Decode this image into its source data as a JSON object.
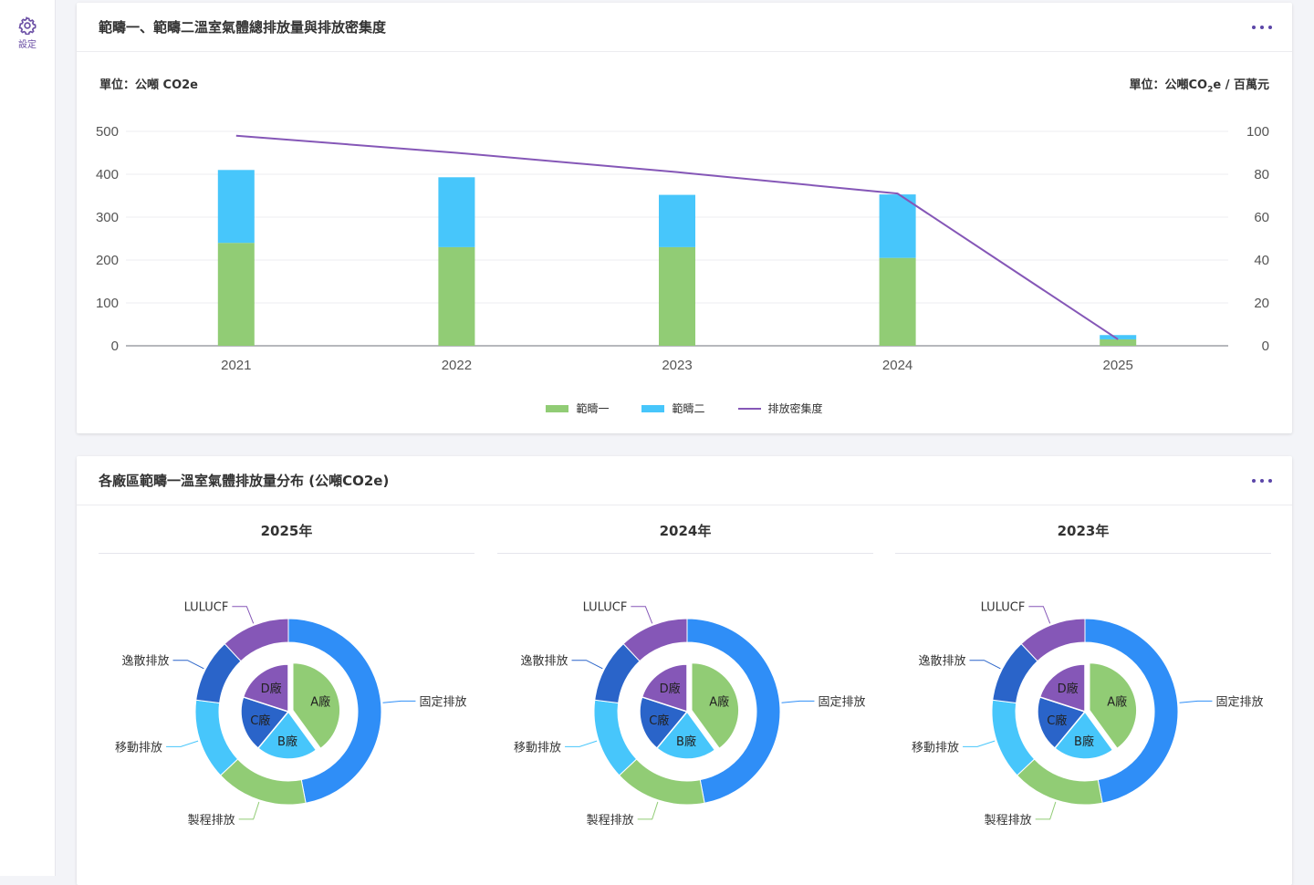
{
  "sidebar": {
    "settings_label": "設定"
  },
  "card1": {
    "title": "範疇一、範疇二溫室氣體總排放量與排放密集度",
    "unit_left": "單位：公噸 CO2e",
    "unit_right_prefix": "單位：公噸CO",
    "unit_right_sub": "2",
    "unit_right_suffix": "e / 百萬元"
  },
  "chart_data": {
    "type": "bar",
    "categories": [
      "2021",
      "2022",
      "2023",
      "2024",
      "2025"
    ],
    "series": [
      {
        "name": "範疇一",
        "type": "bar",
        "stack": "total",
        "axis": "left",
        "color": "#91cc75",
        "values": [
          240,
          230,
          230,
          205,
          15
        ]
      },
      {
        "name": "範疇二",
        "type": "bar",
        "stack": "total",
        "axis": "left",
        "color": "#47c6fb",
        "values": [
          170,
          163,
          122,
          148,
          10
        ]
      },
      {
        "name": "排放密集度",
        "type": "line",
        "axis": "right",
        "color": "#8557b7",
        "values": [
          98,
          90,
          81,
          71,
          3
        ]
      }
    ],
    "ylim_left": [
      0,
      500
    ],
    "yticks_left": [
      0,
      100,
      200,
      300,
      400,
      500
    ],
    "ylim_right": [
      0,
      100
    ],
    "yticks_right": [
      0,
      20,
      40,
      60,
      80,
      100
    ],
    "grid": true,
    "legend": "bottom-center"
  },
  "card2": {
    "title": "各廠區範疇一溫室氣體排放量分布 (公噸CO2e)",
    "outer_categories": [
      "固定排放",
      "製程排放",
      "移動排放",
      "逸散排放",
      "LULUCF"
    ],
    "inner_categories": [
      "A廠",
      "B廠",
      "C廠",
      "D廠"
    ],
    "outer_colors": [
      "#2f8ef7",
      "#91cc75",
      "#47c6fb",
      "#2a64c9",
      "#8557b7"
    ],
    "inner_colors": [
      "#91cc75",
      "#47c6fb",
      "#2a64c9",
      "#8557b7"
    ],
    "years": [
      {
        "year": "2025年",
        "outer_values": [
          47,
          16,
          14,
          11,
          12
        ],
        "inner_values": [
          40,
          21,
          19,
          20
        ]
      },
      {
        "year": "2024年",
        "outer_values": [
          47,
          16,
          14,
          11,
          12
        ],
        "inner_values": [
          40,
          21,
          19,
          20
        ]
      },
      {
        "year": "2023年",
        "outer_values": [
          47,
          16,
          14,
          11,
          12
        ],
        "inner_values": [
          40,
          21,
          19,
          20
        ]
      }
    ]
  }
}
